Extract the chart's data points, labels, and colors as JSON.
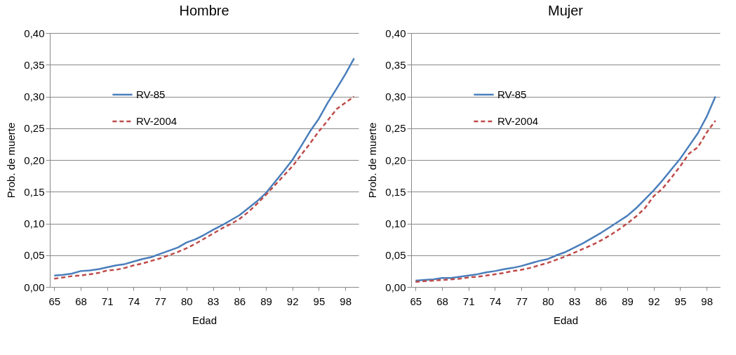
{
  "chart_data": [
    {
      "type": "line",
      "title": "Hombre",
      "xlabel": "Edad",
      "ylabel": "Prob. de muerte",
      "categories": [
        "65",
        null,
        null,
        "68",
        null,
        null,
        "71",
        null,
        null,
        "74",
        null,
        null,
        "77",
        null,
        null,
        "80",
        null,
        null,
        "83",
        null,
        null,
        "86",
        null,
        null,
        "89",
        null,
        null,
        "92",
        null,
        null,
        "95",
        null,
        null,
        "98",
        null
      ],
      "series": [
        {
          "name": "RV-85",
          "color": "#4a7ebb",
          "line_style": "solid",
          "values": [
            0.018,
            0.019,
            0.021,
            0.025,
            0.026,
            0.028,
            0.031,
            0.034,
            0.036,
            0.04,
            0.044,
            0.047,
            0.052,
            0.057,
            0.062,
            0.07,
            0.075,
            0.082,
            0.09,
            0.097,
            0.105,
            0.113,
            0.124,
            0.135,
            0.148,
            0.165,
            0.182,
            0.2,
            0.222,
            0.245,
            0.265,
            0.29,
            0.312,
            0.335,
            0.36
          ]
        },
        {
          "name": "RV-2004",
          "color": "#be4b48",
          "line_style": "dashed",
          "values": [
            0.013,
            0.015,
            0.017,
            0.018,
            0.02,
            0.022,
            0.026,
            0.027,
            0.03,
            0.034,
            0.037,
            0.041,
            0.045,
            0.05,
            0.055,
            0.061,
            0.068,
            0.076,
            0.084,
            0.092,
            0.099,
            0.107,
            0.118,
            0.131,
            0.145,
            0.16,
            0.175,
            0.19,
            0.208,
            0.226,
            0.245,
            0.262,
            0.28,
            0.29,
            0.3
          ]
        }
      ],
      "ylim": [
        0,
        0.4
      ],
      "yticks": [
        {
          "value": 0,
          "label": "0,00"
        },
        {
          "value": 0.05,
          "label": "0,05"
        },
        {
          "value": 0.1,
          "label": "0,10"
        },
        {
          "value": 0.15,
          "label": "0,15"
        },
        {
          "value": 0.2,
          "label": "0,20"
        },
        {
          "value": 0.25,
          "label": "0,25"
        },
        {
          "value": 0.3,
          "label": "0,30"
        },
        {
          "value": 0.35,
          "label": "0,35"
        },
        {
          "value": 0.4,
          "label": "0,40"
        }
      ],
      "grid": "y",
      "legend": "top left"
    },
    {
      "type": "line",
      "title": "Mujer",
      "xlabel": "Edad",
      "ylabel": "Prob. de muerte",
      "categories": [
        "65",
        null,
        null,
        "68",
        null,
        null,
        "71",
        null,
        null,
        "74",
        null,
        null,
        "77",
        null,
        null,
        "80",
        null,
        null,
        "83",
        null,
        null,
        "86",
        null,
        null,
        "89",
        null,
        null,
        "92",
        null,
        null,
        "95",
        null,
        null,
        "98",
        null
      ],
      "series": [
        {
          "name": "RV-85",
          "color": "#4a7ebb",
          "line_style": "solid",
          "values": [
            0.01,
            0.011,
            0.012,
            0.014,
            0.014,
            0.016,
            0.018,
            0.02,
            0.023,
            0.025,
            0.028,
            0.03,
            0.033,
            0.037,
            0.041,
            0.044,
            0.05,
            0.055,
            0.062,
            0.069,
            0.077,
            0.085,
            0.094,
            0.103,
            0.112,
            0.124,
            0.138,
            0.152,
            0.168,
            0.185,
            0.202,
            0.222,
            0.242,
            0.268,
            0.3
          ]
        },
        {
          "name": "RV-2004",
          "color": "#be4b48",
          "line_style": "dashed",
          "values": [
            0.008,
            0.009,
            0.01,
            0.011,
            0.012,
            0.013,
            0.015,
            0.016,
            0.018,
            0.02,
            0.022,
            0.025,
            0.027,
            0.03,
            0.034,
            0.038,
            0.043,
            0.048,
            0.054,
            0.06,
            0.066,
            0.073,
            0.081,
            0.09,
            0.1,
            0.111,
            0.124,
            0.143,
            0.155,
            0.172,
            0.19,
            0.21,
            0.22,
            0.243,
            0.262
          ]
        }
      ],
      "ylim": [
        0,
        0.4
      ],
      "yticks": [
        {
          "value": 0,
          "label": "0,00"
        },
        {
          "value": 0.05,
          "label": "0,05"
        },
        {
          "value": 0.1,
          "label": "0,10"
        },
        {
          "value": 0.15,
          "label": "0,15"
        },
        {
          "value": 0.2,
          "label": "0,20"
        },
        {
          "value": 0.25,
          "label": "0,25"
        },
        {
          "value": 0.3,
          "label": "0,30"
        },
        {
          "value": 0.35,
          "label": "0,35"
        },
        {
          "value": 0.4,
          "label": "0,40"
        }
      ],
      "grid": "y",
      "legend": "top left"
    }
  ]
}
